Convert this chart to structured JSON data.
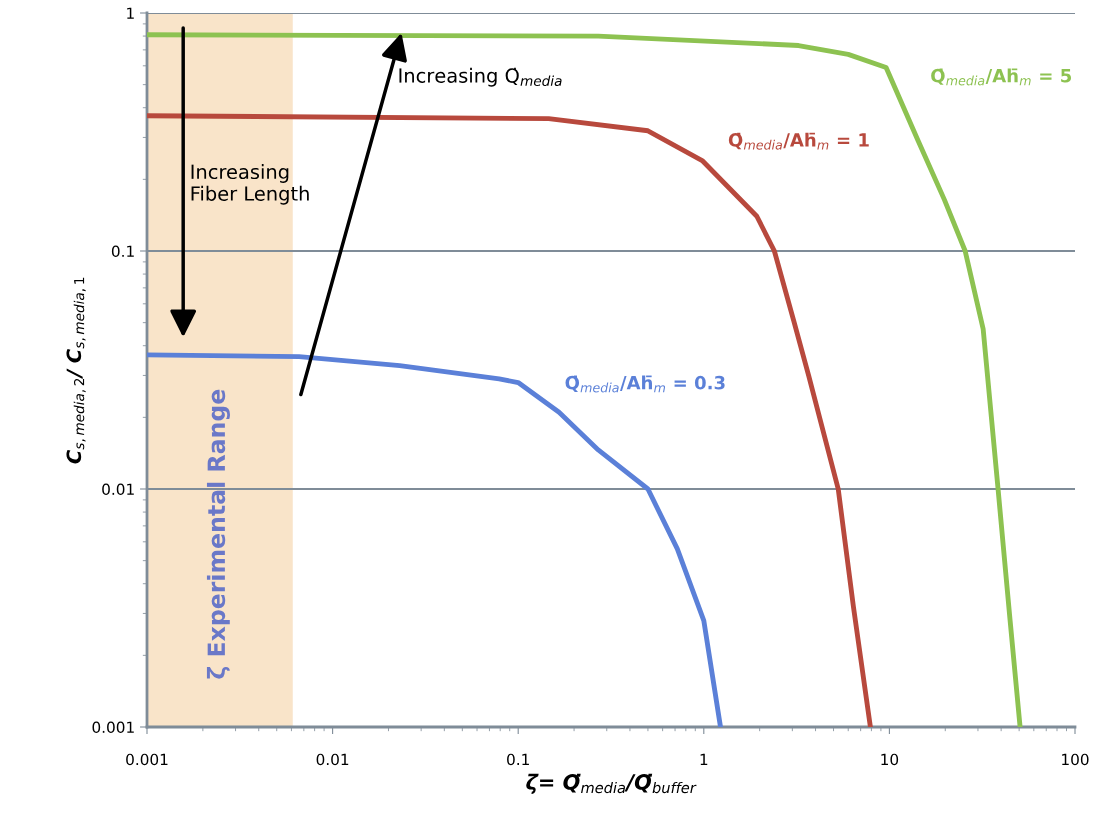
{
  "chart_data": {
    "type": "line",
    "xlabel": "ζ= Q̇$_{media}$/Q̇$_{buffer}$",
    "ylabel": "C$_{s,media,2}$/ C$_{s,media,1}$",
    "log": "xy",
    "xlim": [
      0.001,
      100
    ],
    "ylim": [
      0.001,
      1
    ],
    "xticks": [
      0.001,
      0.01,
      0.1,
      1,
      10,
      100
    ],
    "yticks": [
      0.001,
      0.01,
      0.1,
      1
    ],
    "grid": "y",
    "legend": false,
    "series": [
      {
        "name": "Q̇$_{media}$/Ah̄$_{m}$ = 0.3",
        "color": "#5b80d8",
        "x": [
          0.001,
          0.0066,
          0.023,
          0.079,
          0.1,
          0.166,
          0.27,
          0.5,
          0.72,
          1.0,
          1.23
        ],
        "values": [
          0.0366,
          0.036,
          0.033,
          0.029,
          0.028,
          0.021,
          0.0146,
          0.01,
          0.0056,
          0.0028,
          0.001
        ]
      },
      {
        "name": "Q̇$_{media}$/Ah̄$_{m}$ = 1",
        "color": "#b8493d",
        "x": [
          0.001,
          0.146,
          0.5,
          0.98,
          1.93,
          2.4,
          3.05,
          3.67,
          5.3,
          6.4,
          7.9
        ],
        "values": [
          0.37,
          0.36,
          0.32,
          0.24,
          0.14,
          0.1,
          0.051,
          0.03,
          0.01,
          0.0032,
          0.001
        ]
      },
      {
        "name": "Q̇$_{media}$/Ah̄$_{m}$ = 5",
        "color": "#8dc251",
        "x": [
          0.001,
          0.27,
          3.24,
          6.0,
          9.6,
          14.3,
          19.8,
          25.6,
          32,
          38.5,
          44.7,
          50.6
        ],
        "values": [
          0.81,
          0.8,
          0.73,
          0.67,
          0.59,
          0.29,
          0.164,
          0.1,
          0.047,
          0.01,
          0.0028,
          0.001
        ]
      }
    ],
    "bands": [
      {
        "axis": "x",
        "from": 0.001,
        "to": 0.0061,
        "label": "ζ Experimental Range",
        "color": "#f9e4c9"
      }
    ],
    "annotations": [
      "Increasing Q̇$_{media}$",
      "Increasing\nFiber Length"
    ]
  }
}
